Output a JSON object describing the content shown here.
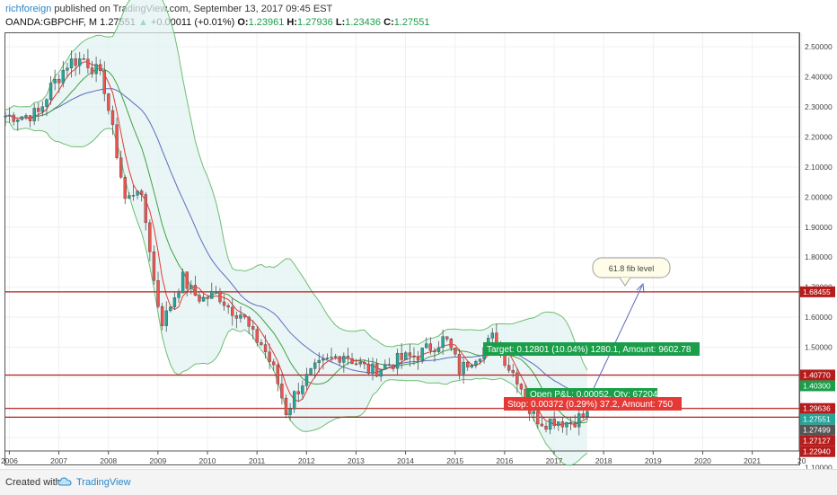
{
  "header": {
    "user": "richforeign",
    "published": "published on TradingView.com, September 13, 2017 09:45 EST",
    "symbol": "OANDA:GBPCHF, M",
    "price": "1.27551",
    "change_arrow": "▲",
    "change": "+0.00011 (+0.01%)",
    "o_label": "O:",
    "o_val": "1.23961",
    "h_label": "H:",
    "h_val": "1.27936",
    "l_label": "L:",
    "l_val": "1.23436",
    "c_label": "C:",
    "c_val": "1.27551"
  },
  "footer": {
    "created": "Created with",
    "brand": "TradingView"
  },
  "colors": {
    "up": "#26a69a",
    "down": "#ef5350",
    "level_line": "#b71c1c",
    "bb": "#4caf50",
    "bb_fill": "#e0f2f1",
    "ma_fast": "#e53935",
    "ma_mid": "#43a047",
    "ma_slow": "#5c6bc0",
    "arrow": "#5c6bc0"
  },
  "chart_data": {
    "type": "candlestick",
    "symbol": "OANDA:GBPCHF",
    "timeframe": "M",
    "x_ticks": [
      "2006",
      "2007",
      "2008",
      "2009",
      "2010",
      "2011",
      "2012",
      "2013",
      "2014",
      "2015",
      "2016",
      "2017",
      "2018",
      "2019",
      "2020",
      "2021",
      "20"
    ],
    "x_range": [
      2005.92,
      2021.95
    ],
    "y_range": [
      1.155,
      2.545
    ],
    "y_ticks": [
      "2.50000",
      "2.40000",
      "2.30000",
      "2.20000",
      "2.10000",
      "2.00000",
      "1.90000",
      "1.80000",
      "1.70000",
      "1.60000",
      "1.50000",
      "1.40000",
      "1.30000",
      "1.20000",
      "1.10000"
    ],
    "y_tick_values": [
      2.5,
      2.4,
      2.3,
      2.2,
      2.1,
      2.0,
      1.9,
      1.8,
      1.7,
      1.6,
      1.5,
      1.4,
      1.3,
      1.2,
      1.1
    ],
    "price_labels": [
      {
        "text": "1.68455",
        "value": 1.68455,
        "color": "#b71c1c"
      },
      {
        "text": "1.40770",
        "value": 1.4077,
        "color": "#b71c1c"
      },
      {
        "text": "1.40300",
        "value": 1.403,
        "color": "#1a9e4a"
      },
      {
        "text": "1.29636",
        "value": 1.29636,
        "color": "#b71c1c"
      },
      {
        "text": "1.27551",
        "value": 1.27551,
        "color": "#26a69a"
      },
      {
        "text": "1.27499",
        "value": 1.27499,
        "color": "#555555"
      },
      {
        "text": "1.27127",
        "value": 1.27127,
        "color": "#b71c1c"
      },
      {
        "text": "1.22940",
        "value": 1.2294,
        "color": "#b71c1c"
      }
    ],
    "horizontal_levels": [
      1.68455,
      1.4077,
      1.29636,
      1.2675
    ],
    "annotations": {
      "fib": "61.8 fib level",
      "target": "Target: 0.12801 (10.04%) 1280.1, Amount: 9602.78",
      "open_pnl": "Open P&L: 0.00052, Qty: 67204",
      "stop": "Stop: 0.00372 (0.29%) 37.2, Amount: 750"
    },
    "anchors": [
      [
        2005.92,
        2.27
      ],
      [
        2006.3,
        2.27
      ],
      [
        2006.6,
        2.28
      ],
      [
        2006.85,
        2.37
      ],
      [
        2007.0,
        2.4
      ],
      [
        2007.2,
        2.45
      ],
      [
        2007.5,
        2.46
      ],
      [
        2007.75,
        2.42
      ],
      [
        2007.9,
        2.38
      ],
      [
        2008.05,
        2.25
      ],
      [
        2008.2,
        2.12
      ],
      [
        2008.35,
        1.98
      ],
      [
        2008.6,
        2.04
      ],
      [
        2008.8,
        1.88
      ],
      [
        2008.95,
        1.68
      ],
      [
        2009.1,
        1.58
      ],
      [
        2009.3,
        1.66
      ],
      [
        2009.5,
        1.73
      ],
      [
        2009.7,
        1.68
      ],
      [
        2009.9,
        1.66
      ],
      [
        2010.2,
        1.68
      ],
      [
        2010.45,
        1.63
      ],
      [
        2010.7,
        1.61
      ],
      [
        2010.9,
        1.54
      ],
      [
        2011.1,
        1.51
      ],
      [
        2011.35,
        1.42
      ],
      [
        2011.6,
        1.28
      ],
      [
        2011.75,
        1.34
      ],
      [
        2011.9,
        1.38
      ],
      [
        2012.2,
        1.43
      ],
      [
        2012.5,
        1.46
      ],
      [
        2012.75,
        1.48
      ],
      [
        2013.0,
        1.45
      ],
      [
        2013.3,
        1.42
      ],
      [
        2013.6,
        1.44
      ],
      [
        2013.9,
        1.46
      ],
      [
        2014.2,
        1.47
      ],
      [
        2014.5,
        1.5
      ],
      [
        2014.8,
        1.53
      ],
      [
        2014.95,
        1.48
      ],
      [
        2015.1,
        1.42
      ],
      [
        2015.3,
        1.46
      ],
      [
        2015.55,
        1.49
      ],
      [
        2015.8,
        1.54
      ],
      [
        2015.95,
        1.48
      ],
      [
        2016.1,
        1.43
      ],
      [
        2016.3,
        1.39
      ],
      [
        2016.45,
        1.3
      ],
      [
        2016.6,
        1.27
      ],
      [
        2016.8,
        1.25
      ],
      [
        2017.0,
        1.26
      ],
      [
        2017.3,
        1.25
      ],
      [
        2017.55,
        1.27
      ],
      [
        2017.7,
        1.276
      ]
    ],
    "indicators": [
      "Bollinger Bands",
      "Moving Average (fast)",
      "Moving Average (mid)",
      "Moving Average (slow)"
    ]
  }
}
